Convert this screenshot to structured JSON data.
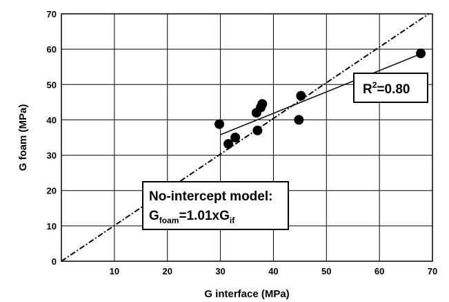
{
  "chart_data": {
    "type": "scatter",
    "xlabel": "G interface (MPa)",
    "ylabel": "G foam (MPa)",
    "xlim": [
      0,
      70
    ],
    "ylim": [
      0,
      70
    ],
    "x_ticks": [
      10,
      20,
      30,
      40,
      50,
      60,
      70
    ],
    "y_ticks": [
      0,
      10,
      20,
      30,
      40,
      50,
      60,
      70
    ],
    "grid": true,
    "points": [
      {
        "x": 29.8,
        "y": 38.8
      },
      {
        "x": 31.5,
        "y": 33.2
      },
      {
        "x": 32.8,
        "y": 35.0
      },
      {
        "x": 36.8,
        "y": 42.0
      },
      {
        "x": 37.0,
        "y": 37.0
      },
      {
        "x": 37.6,
        "y": 43.5
      },
      {
        "x": 37.9,
        "y": 44.5
      },
      {
        "x": 44.8,
        "y": 40.0
      },
      {
        "x": 45.2,
        "y": 46.8
      },
      {
        "x": 67.8,
        "y": 58.8
      }
    ],
    "regression_line": {
      "x": [
        30,
        68
      ],
      "y": [
        35.8,
        58.8
      ]
    },
    "reference_line": {
      "slope": 1.01,
      "style": "dash-dot"
    },
    "annotations": {
      "r2": {
        "base": "R",
        "sup": "2",
        "rest": "=0.80"
      },
      "model": {
        "line1": "No-intercept model:",
        "line2_g": "G",
        "line2_sub": "foam",
        "line2_mid": "=1.01xG",
        "line2_sub2": "if"
      }
    }
  }
}
